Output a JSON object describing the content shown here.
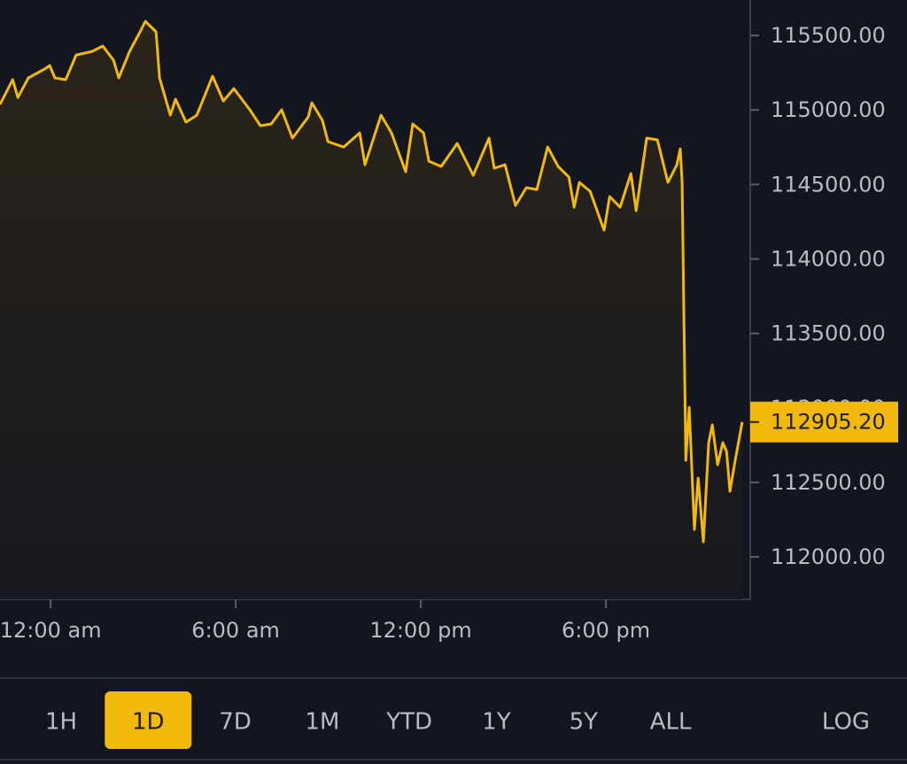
{
  "chart_data": {
    "type": "line",
    "x": [
      -1.64,
      -1.23,
      -1.06,
      -0.72,
      -0.2,
      -0.03,
      0.14,
      0.49,
      0.83,
      1.35,
      1.69,
      2.04,
      2.21,
      2.56,
      2.9,
      3.07,
      3.42,
      3.53,
      3.88,
      4.05,
      4.39,
      4.74,
      5.25,
      5.6,
      5.94,
      6.46,
      6.8,
      7.15,
      7.49,
      7.84,
      8.35,
      8.47,
      8.81,
      8.99,
      9.5,
      10.02,
      10.19,
      10.71,
      11.05,
      11.51,
      11.74,
      12.09,
      12.26,
      12.66,
      13.18,
      13.7,
      14.21,
      14.38,
      14.73,
      15.07,
      15.42,
      15.76,
      16.11,
      16.45,
      16.8,
      16.97,
      17.14,
      17.49,
      17.94,
      18.12,
      18.46,
      18.81,
      18.98,
      19.32,
      19.67,
      20.01,
      20.3,
      20.41,
      20.47,
      20.59,
      20.7,
      20.87,
      20.99,
      21.16,
      21.33,
      21.45,
      21.62,
      21.79,
      21.91,
      22.02,
      22.19,
      22.42
    ],
    "series": [
      {
        "color": "#f0b90b",
        "values": [
          115037,
          115203,
          115084,
          115215,
          115274,
          115298,
          115215,
          115203,
          115369,
          115393,
          115429,
          115334,
          115215,
          115393,
          115524,
          115595,
          115524,
          115215,
          114965,
          115072,
          114918,
          114965,
          115227,
          115060,
          115143,
          115001,
          114894,
          114906,
          115001,
          114811,
          114953,
          115048,
          114930,
          114787,
          114751,
          114846,
          114632,
          114965,
          114846,
          114585,
          114906,
          114846,
          114656,
          114621,
          114775,
          114561,
          114811,
          114609,
          114632,
          114359,
          114478,
          114466,
          114751,
          114621,
          114549,
          114347,
          114514,
          114454,
          114193,
          114419,
          114347,
          114573,
          114324,
          114811,
          114799,
          114514,
          114632,
          114739,
          114514,
          112648,
          113004,
          112184,
          112529,
          112101,
          112767,
          112886,
          112618,
          112767,
          112707,
          112440,
          112648,
          112905.2
        ]
      }
    ],
    "xlim": [
      -1.64,
      22.62
    ],
    "xticks": [
      {
        "value": 0,
        "label": "12:00 am"
      },
      {
        "value": 6,
        "label": "6:00 am"
      },
      {
        "value": 12,
        "label": "12:00 pm"
      },
      {
        "value": 18,
        "label": "6:00 pm"
      }
    ],
    "ylim": [
      111715,
      115738
    ],
    "yticks": [
      {
        "value": 112000,
        "label": "112000.00"
      },
      {
        "value": 112500,
        "label": "112500.00"
      },
      {
        "value": 113000,
        "label": "113000.00"
      },
      {
        "value": 113500,
        "label": "113500.00"
      },
      {
        "value": 114000,
        "label": "114000.00"
      },
      {
        "value": 114500,
        "label": "114500.00"
      },
      {
        "value": 115000,
        "label": "115000.00"
      },
      {
        "value": 115500,
        "label": "115500.00"
      }
    ],
    "current_price": {
      "value": 112905.2,
      "label": "112905.20"
    },
    "log_scale": false
  },
  "controls": {
    "ranges": [
      "1H",
      "1D",
      "7D",
      "1M",
      "YTD",
      "1Y",
      "5Y",
      "ALL"
    ],
    "selected": 1,
    "log": "LOG"
  }
}
